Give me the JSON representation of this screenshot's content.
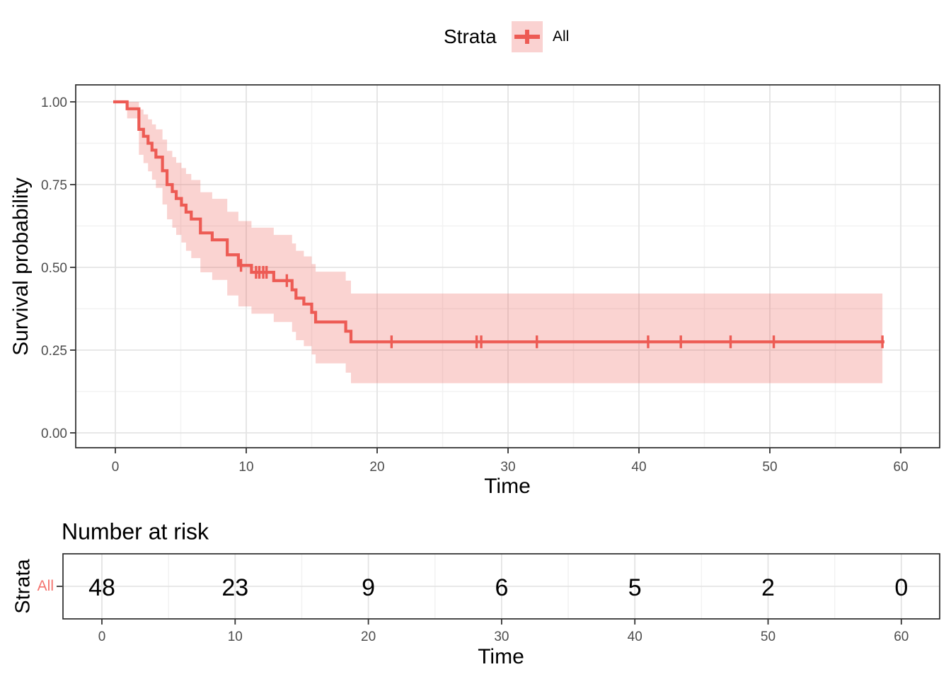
{
  "legend": {
    "title": "Strata",
    "items": [
      {
        "label": "All"
      }
    ]
  },
  "colors": {
    "line": "#ED5B54",
    "ribbon_fill": "#ED5B54",
    "ribbon_opacity": 0.27,
    "legend_key_fill": "#FAD2D1",
    "strata_label": "#F4736E",
    "axis_text": "#4D4D4D",
    "grid_major": "#E4E4E4",
    "grid_minor": "#F2F2F2",
    "panel_border": "#2B2B2B",
    "tick_mark": "#333333"
  },
  "chart_data": {
    "type": "line",
    "variant": "kaplan-meier-step",
    "title": "",
    "xlabel": "Time",
    "ylabel": "Survival probability",
    "xlim": [
      -3,
      63
    ],
    "ylim": [
      -0.045,
      1.05
    ],
    "x_ticks": [
      0,
      10,
      20,
      30,
      40,
      50,
      60
    ],
    "x_minor_ticks": [
      5,
      15,
      25,
      35,
      45,
      55
    ],
    "y_ticks": [
      0,
      0.25,
      0.5,
      0.75,
      1
    ],
    "y_minor_ticks": [
      0.125,
      0.375,
      0.625,
      0.875
    ],
    "y_tick_labels": [
      "0.00",
      "0.25",
      "0.50",
      "0.75",
      "1.00"
    ],
    "grid": "major+minor",
    "legend_position": "top",
    "series": [
      {
        "name": "All",
        "steps": [
          [
            0,
            1.0
          ],
          [
            0.9,
            0.979
          ],
          [
            1.8,
            0.917
          ],
          [
            2.15,
            0.896
          ],
          [
            2.5,
            0.875
          ],
          [
            2.8,
            0.854
          ],
          [
            3.1,
            0.833
          ],
          [
            3.6,
            0.792
          ],
          [
            3.95,
            0.75
          ],
          [
            4.35,
            0.729
          ],
          [
            4.65,
            0.708
          ],
          [
            5.05,
            0.688
          ],
          [
            5.4,
            0.667
          ],
          [
            5.8,
            0.646
          ],
          [
            6.5,
            0.604
          ],
          [
            7.4,
            0.583
          ],
          [
            8.55,
            0.538
          ],
          [
            9.4,
            0.506
          ],
          [
            10.4,
            0.485
          ],
          [
            12.1,
            0.46
          ],
          [
            13.5,
            0.432
          ],
          [
            13.8,
            0.407
          ],
          [
            14.4,
            0.389
          ],
          [
            15.0,
            0.364
          ],
          [
            15.3,
            0.335
          ],
          [
            17.6,
            0.307
          ],
          [
            18.0,
            0.275
          ]
        ],
        "censors": [
          [
            9.6,
            0.506
          ],
          [
            10.75,
            0.485
          ],
          [
            11.0,
            0.485
          ],
          [
            11.3,
            0.485
          ],
          [
            11.55,
            0.485
          ],
          [
            13.1,
            0.46
          ],
          [
            21.1,
            0.275
          ],
          [
            27.6,
            0.275
          ],
          [
            27.95,
            0.275
          ],
          [
            32.2,
            0.275
          ],
          [
            40.7,
            0.275
          ],
          [
            43.2,
            0.275
          ],
          [
            47.0,
            0.275
          ],
          [
            50.3,
            0.275
          ],
          [
            58.6,
            0.275
          ]
        ],
        "ribbon": [
          [
            0.9,
            0.95,
            1.0
          ],
          [
            1.8,
            0.84,
            0.977
          ],
          [
            2.15,
            0.815,
            0.962
          ],
          [
            2.5,
            0.79,
            0.947
          ],
          [
            2.8,
            0.765,
            0.932
          ],
          [
            3.1,
            0.74,
            0.917
          ],
          [
            3.6,
            0.69,
            0.886
          ],
          [
            3.95,
            0.645,
            0.852
          ],
          [
            4.35,
            0.62,
            0.833
          ],
          [
            4.65,
            0.598,
            0.816
          ],
          [
            5.05,
            0.575,
            0.8
          ],
          [
            5.4,
            0.55,
            0.782
          ],
          [
            5.8,
            0.528,
            0.764
          ],
          [
            6.5,
            0.485,
            0.727
          ],
          [
            7.4,
            0.462,
            0.707
          ],
          [
            8.55,
            0.415,
            0.668
          ],
          [
            9.4,
            0.382,
            0.64
          ],
          [
            10.4,
            0.36,
            0.62
          ],
          [
            12.1,
            0.335,
            0.598
          ],
          [
            13.5,
            0.305,
            0.572
          ],
          [
            13.8,
            0.28,
            0.55
          ],
          [
            14.4,
            0.262,
            0.533
          ],
          [
            15.0,
            0.237,
            0.51
          ],
          [
            15.3,
            0.21,
            0.487
          ],
          [
            17.6,
            0.182,
            0.46
          ],
          [
            18.0,
            0.15,
            0.421
          ]
        ],
        "ribbon_end_time": 58.6,
        "line_end_time": 58.75
      }
    ]
  },
  "risk_table": {
    "title": "Number at risk",
    "ylabel": "Strata",
    "xlabel": "Time",
    "times": [
      0,
      10,
      20,
      30,
      40,
      50,
      60
    ],
    "rows": [
      {
        "label": "All",
        "counts": [
          48,
          23,
          9,
          6,
          5,
          2,
          0
        ]
      }
    ]
  }
}
